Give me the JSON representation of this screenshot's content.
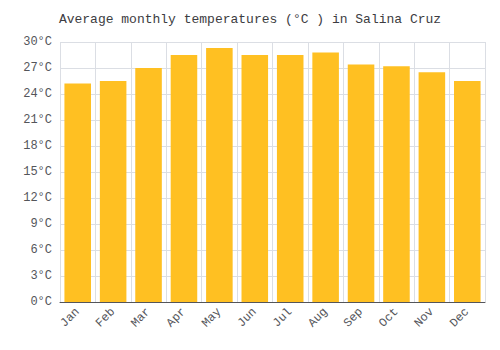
{
  "chart_data": {
    "type": "bar",
    "title": "Average monthly temperatures (°C ) in Salina Cruz",
    "categories": [
      "Jan",
      "Feb",
      "Mar",
      "Apr",
      "May",
      "Jun",
      "Jul",
      "Aug",
      "Sep",
      "Oct",
      "Nov",
      "Dec"
    ],
    "values": [
      25.2,
      25.5,
      27.0,
      28.5,
      29.3,
      28.5,
      28.5,
      28.8,
      27.4,
      27.2,
      26.5,
      25.5
    ],
    "color": "#FFC022",
    "ylim": [
      0,
      30
    ],
    "yticks": [
      {
        "value": 0,
        "label": "0°C"
      },
      {
        "value": 3,
        "label": "3°C"
      },
      {
        "value": 6,
        "label": "6°C"
      },
      {
        "value": 9,
        "label": "9°C"
      },
      {
        "value": 12,
        "label": "12°C"
      },
      {
        "value": 15,
        "label": "15°C"
      },
      {
        "value": 18,
        "label": "18°C"
      },
      {
        "value": 21,
        "label": "21°C"
      },
      {
        "value": 24,
        "label": "24°C"
      },
      {
        "value": 27,
        "label": "27°C"
      },
      {
        "value": 30,
        "label": "30°C"
      }
    ],
    "grid": true
  }
}
